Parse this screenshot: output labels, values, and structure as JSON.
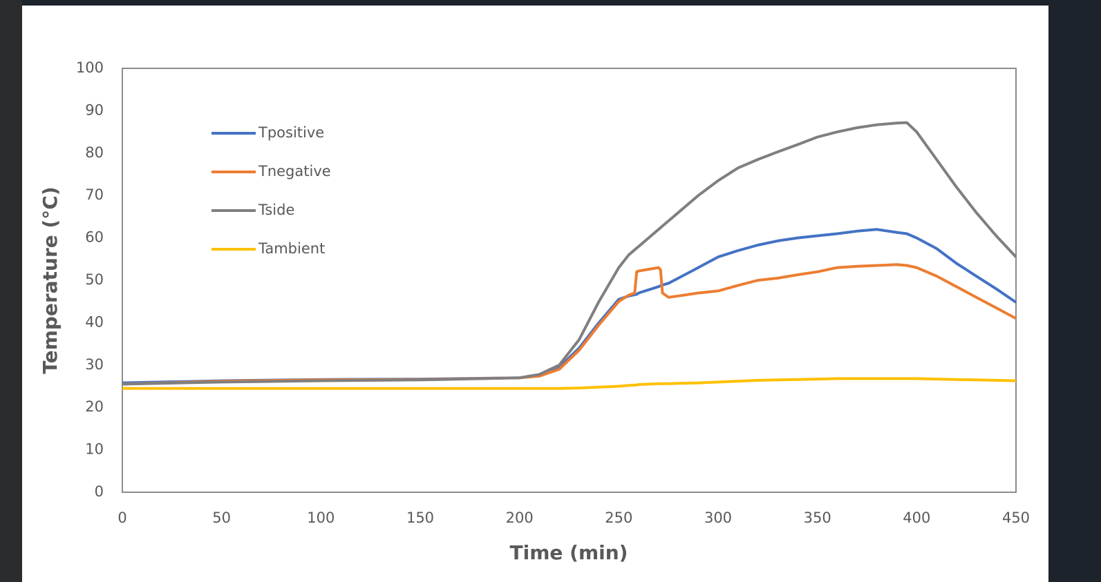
{
  "chart_data": {
    "type": "line",
    "x_label": "Time (min)",
    "y_label": "Temperature (°C)",
    "x": [
      0,
      50,
      100,
      150,
      200,
      210,
      220,
      230,
      240,
      250,
      255,
      258,
      259,
      260,
      270,
      271,
      272,
      275,
      280,
      290,
      300,
      310,
      320,
      330,
      340,
      350,
      360,
      370,
      380,
      390,
      395,
      400,
      410,
      420,
      430,
      440,
      450
    ],
    "series": [
      {
        "name": "Tpositive",
        "color": "#4472c4",
        "values": [
          25.8,
          26.3,
          26.6,
          26.7,
          27,
          27.5,
          29.5,
          34,
          40,
          45.5,
          46.3,
          46.6,
          46.7,
          47,
          48.5,
          48.7,
          48.9,
          49.3,
          50.5,
          53,
          55.5,
          57,
          58.3,
          59.3,
          60,
          60.5,
          61,
          61.6,
          62,
          61.3,
          61,
          60,
          57.5,
          54,
          51,
          48,
          44.8
        ]
      },
      {
        "name": "Tnegative",
        "color": "#ed7d31",
        "values": [
          25.5,
          26.2,
          26.5,
          26.6,
          27,
          27.4,
          29,
          33.5,
          39.5,
          45,
          46.5,
          47,
          52,
          52.2,
          53,
          52.5,
          47,
          46,
          46.3,
          47,
          47.5,
          48.8,
          50,
          50.5,
          51.3,
          52,
          53,
          53.3,
          53.5,
          53.7,
          53.5,
          53,
          51,
          48.5,
          46,
          43.5,
          41
        ]
      },
      {
        "name": "Tside",
        "color": "#7f7f7f",
        "values": [
          25.5,
          26,
          26.3,
          26.5,
          27,
          27.8,
          30,
          36,
          45,
          53,
          56,
          57.2,
          57.6,
          58,
          62,
          62.4,
          62.8,
          64,
          66,
          70,
          73.5,
          76.5,
          78.5,
          80.3,
          82,
          83.8,
          85,
          86,
          86.7,
          87.1,
          87.2,
          85,
          78.5,
          72,
          66,
          60.5,
          55.5
        ]
      },
      {
        "name": "Tambient",
        "color": "#ffc000",
        "values": [
          24.5,
          24.5,
          24.5,
          24.5,
          24.5,
          24.5,
          24.5,
          24.6,
          24.8,
          25,
          25.2,
          25.3,
          25.3,
          25.4,
          25.6,
          25.6,
          25.6,
          25.6,
          25.7,
          25.8,
          26,
          26.2,
          26.4,
          26.5,
          26.6,
          26.7,
          26.8,
          26.8,
          26.8,
          26.8,
          26.8,
          26.8,
          26.7,
          26.6,
          26.5,
          26.4,
          26.3
        ]
      }
    ],
    "xlim": [
      0,
      450
    ],
    "xticks": [
      0,
      50,
      100,
      150,
      200,
      250,
      300,
      350,
      400,
      450
    ],
    "ylim": [
      0,
      100
    ],
    "yticks": [
      0,
      10,
      20,
      30,
      40,
      50,
      60,
      70,
      80,
      90,
      100
    ],
    "grid": false,
    "legend": "upper-left"
  }
}
